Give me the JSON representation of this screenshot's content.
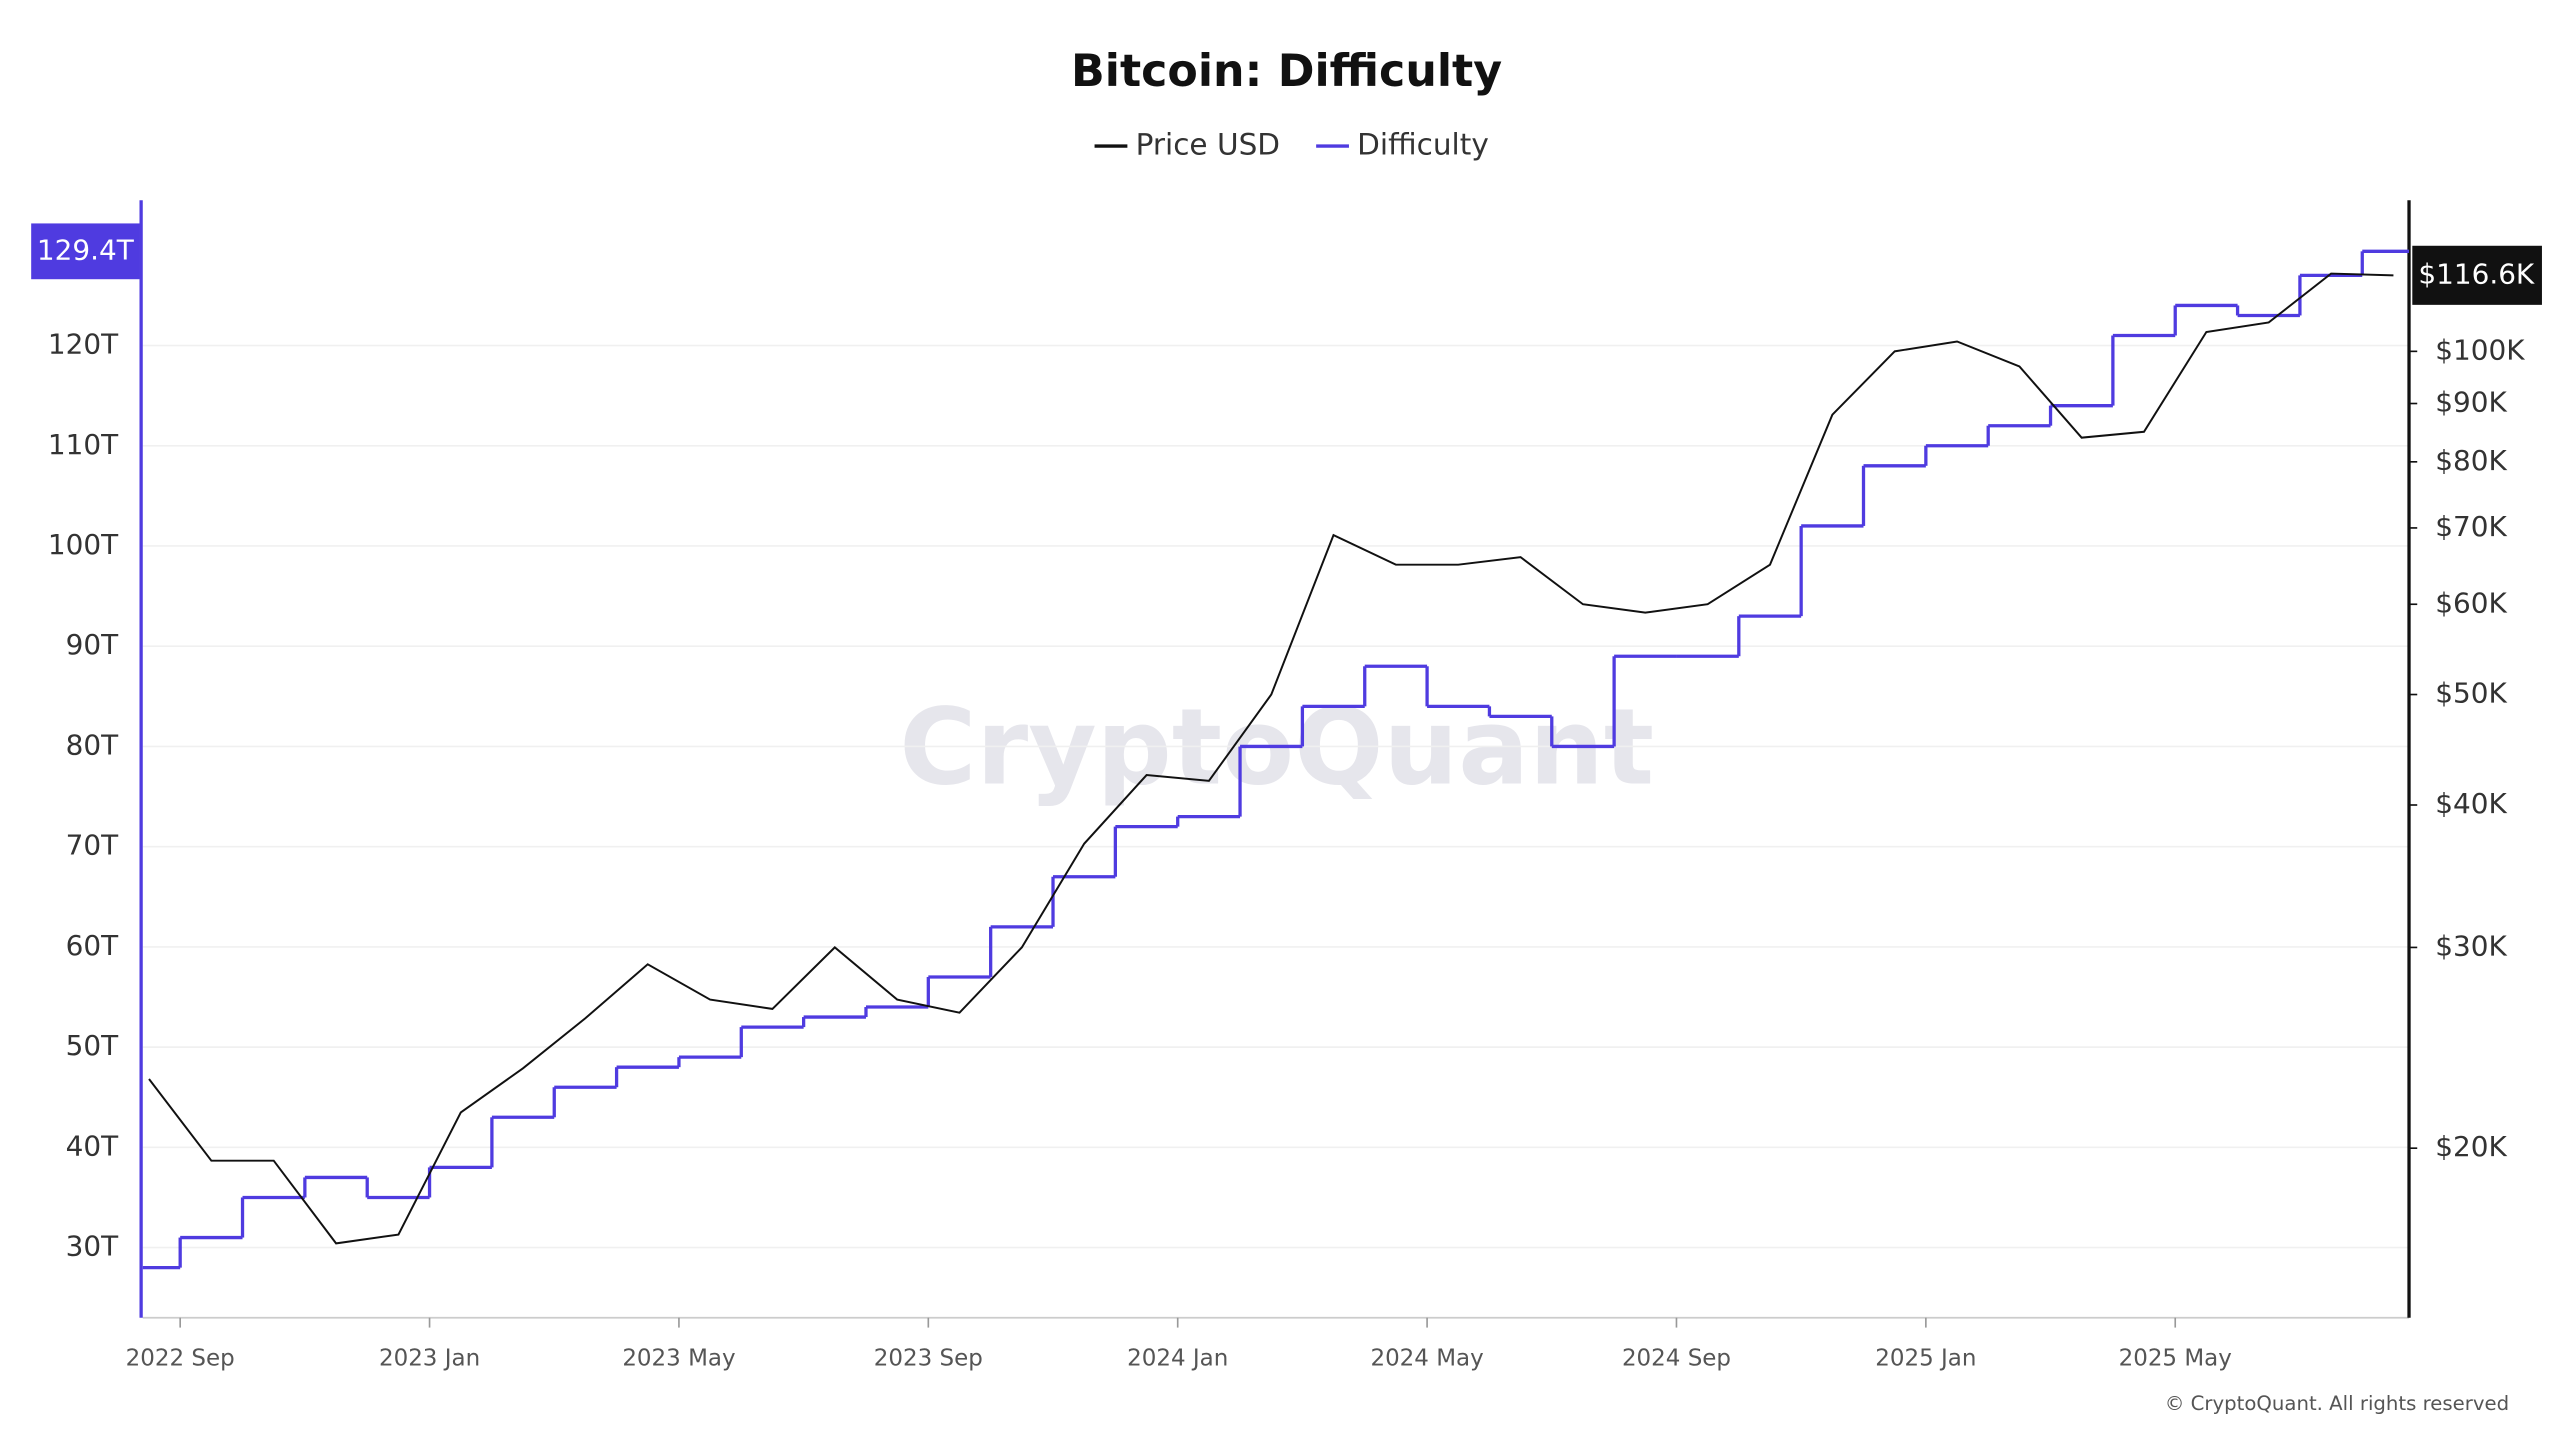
{
  "chart_data": {
    "type": "line",
    "title": "Bitcoin: Difficulty",
    "watermark": "CryptoQuant",
    "copyright": "© CryptoQuant. All rights reserved",
    "x": [
      "2022-08",
      "2022-09",
      "2022-10",
      "2022-11",
      "2022-12",
      "2023-01",
      "2023-02",
      "2023-03",
      "2023-04",
      "2023-05",
      "2023-06",
      "2023-07",
      "2023-08",
      "2023-09",
      "2023-10",
      "2023-11",
      "2023-12",
      "2024-01",
      "2024-02",
      "2024-03",
      "2024-04",
      "2024-05",
      "2024-06",
      "2024-07",
      "2024-08",
      "2024-09",
      "2024-10",
      "2024-11",
      "2024-12",
      "2025-01",
      "2025-02",
      "2025-03",
      "2025-04",
      "2025-05",
      "2025-06",
      "2025-07",
      "2025-08"
    ],
    "xticks": [
      {
        "value": "2022-09",
        "label": "2022 Sep"
      },
      {
        "value": "2023-01",
        "label": "2023 Jan"
      },
      {
        "value": "2023-05",
        "label": "2023 May"
      },
      {
        "value": "2023-09",
        "label": "2023 Sep"
      },
      {
        "value": "2024-01",
        "label": "2024 Jan"
      },
      {
        "value": "2024-05",
        "label": "2024 May"
      },
      {
        "value": "2024-09",
        "label": "2024 Sep"
      },
      {
        "value": "2025-01",
        "label": "2025 Jan"
      },
      {
        "value": "2025-05",
        "label": "2025 May"
      }
    ],
    "series": [
      {
        "name": "Price USD",
        "color": "#111111",
        "axis": "y2",
        "values": [
          23000,
          19500,
          19500,
          16500,
          16800,
          21500,
          23500,
          26000,
          29000,
          27000,
          26500,
          30000,
          27000,
          26300,
          30000,
          37000,
          42500,
          42000,
          50000,
          69000,
          65000,
          65000,
          66000,
          60000,
          59000,
          60000,
          65000,
          88000,
          100000,
          102000,
          97000,
          84000,
          85000,
          104000,
          106000,
          117000,
          116600
        ],
        "current_label": {
          "value": 116600,
          "label": "$116.6K"
        }
      },
      {
        "name": "Difficulty",
        "color": "#4f3be0",
        "axis": "y",
        "values": [
          28,
          31,
          35,
          37,
          35,
          38,
          43,
          46,
          48,
          49,
          52,
          53,
          54,
          57,
          62,
          67,
          72,
          73,
          80,
          84,
          88,
          84,
          83,
          80,
          89,
          89,
          93,
          102,
          108,
          110,
          112,
          114,
          121,
          124,
          123,
          127,
          129.4
        ],
        "current_label": {
          "value": 129.4,
          "label": "129.4T"
        }
      }
    ],
    "ylim": [
      23,
      134.5
    ],
    "yticks": [
      {
        "value": 30,
        "label": "30T"
      },
      {
        "value": 40,
        "label": "40T"
      },
      {
        "value": 50,
        "label": "50T"
      },
      {
        "value": 60,
        "label": "60T"
      },
      {
        "value": 70,
        "label": "70T"
      },
      {
        "value": 80,
        "label": "80T"
      },
      {
        "value": 90,
        "label": "90T"
      },
      {
        "value": 100,
        "label": "100T"
      },
      {
        "value": 110,
        "label": "110T"
      },
      {
        "value": 120,
        "label": "120T"
      }
    ],
    "y2lim": [
      14200,
      135700
    ],
    "y2scale": "log",
    "y2ticks": [
      {
        "value": 20000,
        "label": "$20K"
      },
      {
        "value": 30000,
        "label": "$30K"
      },
      {
        "value": 40000,
        "label": "$40K"
      },
      {
        "value": 50000,
        "label": "$50K"
      },
      {
        "value": 60000,
        "label": "$60K"
      },
      {
        "value": 70000,
        "label": "$70K"
      },
      {
        "value": 80000,
        "label": "$80K"
      },
      {
        "value": 90000,
        "label": "$90K"
      },
      {
        "value": 100000,
        "label": "$100K"
      }
    ],
    "grid": true
  }
}
